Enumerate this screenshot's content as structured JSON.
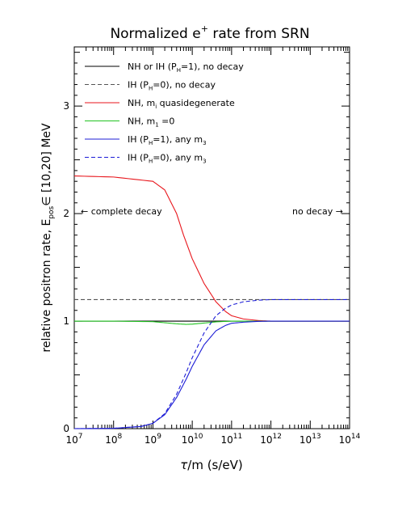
{
  "chart_data": {
    "type": "line",
    "title": {
      "main": "Normalized e",
      "sup": "+",
      "rest": " rate from SRN"
    },
    "xlabel": {
      "sym": "τ",
      "rest": "/m  (s/eV)"
    },
    "ylabel": {
      "main": "relative positron rate,  E",
      "sub": "pos",
      "rest": "∈ [10,20] MeV"
    },
    "xscale": "log",
    "xlim": [
      10000000.0,
      100000000000000.0
    ],
    "ylim": [
      0,
      3.55
    ],
    "x_ticks": [
      {
        "base": "10",
        "exp": "7",
        "v": 7
      },
      {
        "base": "10",
        "exp": "8",
        "v": 8
      },
      {
        "base": "10",
        "exp": "9",
        "v": 9
      },
      {
        "base": "10",
        "exp": "10",
        "v": 10
      },
      {
        "base": "10",
        "exp": "11",
        "v": 11
      },
      {
        "base": "10",
        "exp": "12",
        "v": 12
      },
      {
        "base": "10",
        "exp": "13",
        "v": 13
      },
      {
        "base": "10",
        "exp": "14",
        "v": 14
      }
    ],
    "y_ticks": [
      {
        "label": "0",
        "v": 0
      },
      {
        "label": "1",
        "v": 1
      },
      {
        "label": "2",
        "v": 2
      },
      {
        "label": "3",
        "v": 3
      }
    ],
    "annotations": {
      "left": "←  complete decay",
      "right": "no decay  →"
    },
    "series": [
      {
        "name": "NH or IH (P=1), no decay",
        "legend": {
          "a": "NH or IH (P",
          "sub": "H",
          "b": "=1), no decay"
        },
        "color": "#000000",
        "dash": false,
        "x": [
          10000000.0,
          100000000000000.0
        ],
        "y": [
          1.0,
          1.0
        ]
      },
      {
        "name": "IH (P=0), no decay",
        "legend": {
          "a": "IH (P",
          "sub": "H",
          "b": "=0), no decay"
        },
        "color": "#555555",
        "dash": true,
        "x": [
          10000000.0,
          100000000000000.0
        ],
        "y": [
          1.2,
          1.2
        ]
      },
      {
        "name": "NH, m quasidegenerate",
        "legend": {
          "a": "NH, m",
          "sub": "i",
          "b": " quasidegenerate"
        },
        "color": "#e8161c",
        "dash": false,
        "x": [
          10000000.0,
          100000000.0,
          1000000000.0,
          2000000000.0,
          4000000000.0,
          6000000000.0,
          10000000000.0,
          20000000000.0,
          40000000000.0,
          70000000000.0,
          100000000000.0,
          200000000000.0,
          500000000000.0,
          1000000000000.0,
          10000000000000.0,
          100000000000000.0
        ],
        "y": [
          2.35,
          2.34,
          2.3,
          2.22,
          2.0,
          1.8,
          1.58,
          1.35,
          1.18,
          1.09,
          1.05,
          1.02,
          1.005,
          1.0,
          1.0,
          1.0
        ]
      },
      {
        "name": "NH, m1 =0",
        "legend": {
          "a": "NH, m",
          "sub": "1",
          "b": " =0"
        },
        "color": "#22c322",
        "dash": false,
        "x": [
          10000000.0,
          100000000.0,
          1000000000.0,
          2000000000.0,
          4000000000.0,
          7000000000.0,
          10000000000.0,
          20000000000.0,
          40000000000.0,
          100000000000.0,
          1000000000000.0,
          100000000000000.0
        ],
        "y": [
          1.0,
          1.0,
          0.995,
          0.985,
          0.975,
          0.97,
          0.972,
          0.982,
          0.993,
          1.0,
          1.0,
          1.0
        ]
      },
      {
        "name": "IH (P=1), any m3",
        "legend": {
          "a": "IH (P",
          "sub": "H",
          "b": "=1), any m",
          "sub2": "3"
        },
        "color": "#1c1cd6",
        "dash": false,
        "x": [
          10000000.0,
          100000000.0,
          500000000.0,
          1000000000.0,
          2000000000.0,
          4000000000.0,
          7000000000.0,
          10000000000.0,
          20000000000.0,
          40000000000.0,
          70000000000.0,
          100000000000.0,
          200000000000.0,
          500000000000.0,
          1000000000000.0,
          10000000000000.0,
          100000000000000.0
        ],
        "y": [
          0.0,
          0.003,
          0.02,
          0.05,
          0.13,
          0.29,
          0.46,
          0.58,
          0.78,
          0.91,
          0.96,
          0.98,
          0.99,
          0.998,
          1.0,
          1.0,
          1.0
        ]
      },
      {
        "name": "IH (P=0), any m3",
        "legend": {
          "a": "IH (P",
          "sub": "H",
          "b": "=0), any m",
          "sub2": "3"
        },
        "color": "#1c1cd6",
        "dash": true,
        "x": [
          10000000.0,
          100000000.0,
          500000000.0,
          1000000000.0,
          2000000000.0,
          4000000000.0,
          7000000000.0,
          10000000000.0,
          20000000000.0,
          40000000000.0,
          70000000000.0,
          100000000000.0,
          200000000000.0,
          500000000000.0,
          1000000000000.0,
          10000000000000.0,
          100000000000000.0
        ],
        "y": [
          0.0,
          0.003,
          0.02,
          0.05,
          0.14,
          0.32,
          0.52,
          0.66,
          0.89,
          1.05,
          1.12,
          1.15,
          1.18,
          1.195,
          1.2,
          1.2,
          1.2
        ]
      }
    ]
  }
}
